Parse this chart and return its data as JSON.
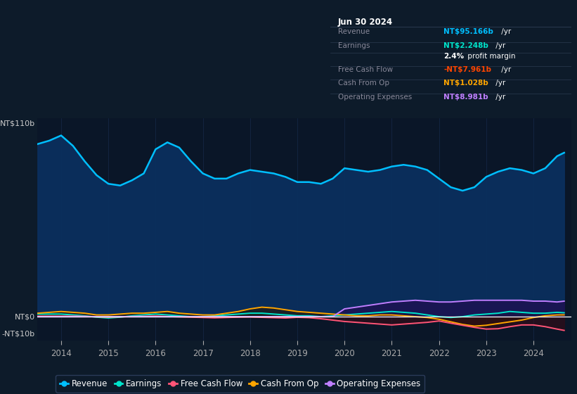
{
  "bg_color": "#0d1b2a",
  "plot_bg_color": "#0a1628",
  "grid_color": "#16294a",
  "title_date": "Jun 30 2024",
  "ylabel_top": "NT$110b",
  "ylabel_zero": "NT$0",
  "ylabel_neg": "-NT$10b",
  "revenue_color": "#00bfff",
  "earnings_color": "#00e5cc",
  "fcf_color": "#ff5577",
  "cashfromop_color": "#ffa500",
  "opex_color": "#bf7fff",
  "years": [
    2013.5,
    2013.75,
    2014.0,
    2014.25,
    2014.5,
    2014.75,
    2015.0,
    2015.25,
    2015.5,
    2015.75,
    2016.0,
    2016.25,
    2016.5,
    2016.75,
    2017.0,
    2017.25,
    2017.5,
    2017.75,
    2018.0,
    2018.25,
    2018.5,
    2018.75,
    2019.0,
    2019.25,
    2019.5,
    2019.75,
    2020.0,
    2020.25,
    2020.5,
    2020.75,
    2021.0,
    2021.25,
    2021.5,
    2021.75,
    2022.0,
    2022.25,
    2022.5,
    2022.75,
    2023.0,
    2023.25,
    2023.5,
    2023.75,
    2024.0,
    2024.25,
    2024.5,
    2024.65
  ],
  "revenue": [
    100,
    102,
    105,
    99,
    90,
    82,
    77,
    76,
    79,
    83,
    97,
    101,
    98,
    90,
    83,
    80,
    80,
    83,
    85,
    84,
    83,
    81,
    78,
    78,
    77,
    80,
    86,
    85,
    84,
    85,
    87,
    88,
    87,
    85,
    80,
    75,
    73,
    75,
    81,
    84,
    86,
    85,
    83,
    86,
    93,
    95
  ],
  "earnings": [
    1.5,
    1.5,
    1.5,
    1.0,
    0.5,
    -0.3,
    -0.8,
    -0.3,
    0.5,
    1.0,
    1.5,
    1.0,
    0.5,
    0.0,
    0.0,
    0.5,
    1.0,
    1.5,
    2.0,
    2.0,
    1.5,
    1.0,
    0.5,
    0.5,
    0.0,
    0.5,
    1.0,
    1.5,
    2.0,
    2.5,
    3.0,
    2.5,
    2.0,
    1.0,
    0.0,
    -0.5,
    0.0,
    1.0,
    1.5,
    2.0,
    3.0,
    2.5,
    2.0,
    2.0,
    2.5,
    2.248
  ],
  "fcf": [
    0.3,
    0.3,
    0.3,
    0.3,
    0.2,
    -0.1,
    -0.3,
    -0.1,
    0.1,
    0.2,
    0.4,
    0.1,
    -0.1,
    -0.3,
    -0.5,
    -0.7,
    -0.5,
    -0.3,
    -0.2,
    -0.4,
    -0.6,
    -0.8,
    -0.4,
    -0.6,
    -1.2,
    -2.0,
    -2.8,
    -3.3,
    -3.8,
    -4.3,
    -4.8,
    -4.3,
    -3.8,
    -3.3,
    -2.5,
    -3.8,
    -5.0,
    -6.2,
    -7.2,
    -7.0,
    -5.8,
    -4.8,
    -4.8,
    -5.8,
    -7.2,
    -7.961
  ],
  "cashfromop": [
    2.0,
    2.5,
    3.0,
    2.5,
    2.0,
    1.0,
    1.0,
    1.5,
    2.0,
    2.0,
    2.5,
    3.0,
    2.0,
    1.5,
    1.0,
    1.0,
    2.0,
    3.0,
    4.5,
    5.5,
    5.0,
    4.0,
    3.0,
    2.5,
    2.0,
    1.5,
    1.0,
    0.5,
    0.5,
    1.0,
    1.0,
    0.5,
    0.0,
    -0.5,
    -1.5,
    -3.0,
    -4.5,
    -5.5,
    -5.0,
    -4.0,
    -3.0,
    -2.0,
    -0.5,
    0.5,
    1.0,
    1.028
  ],
  "opex": [
    0.0,
    0.0,
    0.0,
    0.0,
    0.0,
    0.0,
    0.0,
    0.0,
    0.0,
    0.0,
    0.0,
    0.0,
    0.0,
    0.0,
    0.0,
    0.0,
    0.0,
    0.0,
    0.0,
    0.0,
    0.0,
    0.0,
    0.0,
    0.0,
    0.0,
    0.0,
    4.5,
    5.5,
    6.5,
    7.5,
    8.5,
    9.0,
    9.5,
    9.0,
    8.5,
    8.5,
    9.0,
    9.5,
    9.5,
    9.5,
    9.5,
    9.5,
    9.0,
    9.0,
    8.5,
    8.981
  ],
  "ylim_min": -14,
  "ylim_max": 115,
  "xlim_min": 2013.5,
  "xlim_max": 2024.8,
  "year_ticks": [
    2014,
    2015,
    2016,
    2017,
    2018,
    2019,
    2020,
    2021,
    2022,
    2023,
    2024
  ],
  "legend_items": [
    {
      "label": "Revenue",
      "color": "#00bfff"
    },
    {
      "label": "Earnings",
      "color": "#00e5cc"
    },
    {
      "label": "Free Cash Flow",
      "color": "#ff5577"
    },
    {
      "label": "Cash From Op",
      "color": "#ffa500"
    },
    {
      "label": "Operating Expenses",
      "color": "#bf7fff"
    }
  ],
  "tooltip_rows": [
    {
      "label": "Revenue",
      "value": "NT$95.166b",
      "suffix": " /yr",
      "color": "#00bfff",
      "is_margin": false
    },
    {
      "label": "Earnings",
      "value": "NT$2.248b",
      "suffix": " /yr",
      "color": "#00e5cc",
      "is_margin": false
    },
    {
      "label": "",
      "value": "2.4%",
      "suffix": " profit margin",
      "color": "white",
      "is_margin": true
    },
    {
      "label": "Free Cash Flow",
      "value": "-NT$7.961b",
      "suffix": " /yr",
      "color": "#ff4500",
      "is_margin": false
    },
    {
      "label": "Cash From Op",
      "value": "NT$1.028b",
      "suffix": " /yr",
      "color": "#ffa500",
      "is_margin": false
    },
    {
      "label": "Operating Expenses",
      "value": "NT$8.981b",
      "suffix": " /yr",
      "color": "#bf7fff",
      "is_margin": false
    }
  ]
}
